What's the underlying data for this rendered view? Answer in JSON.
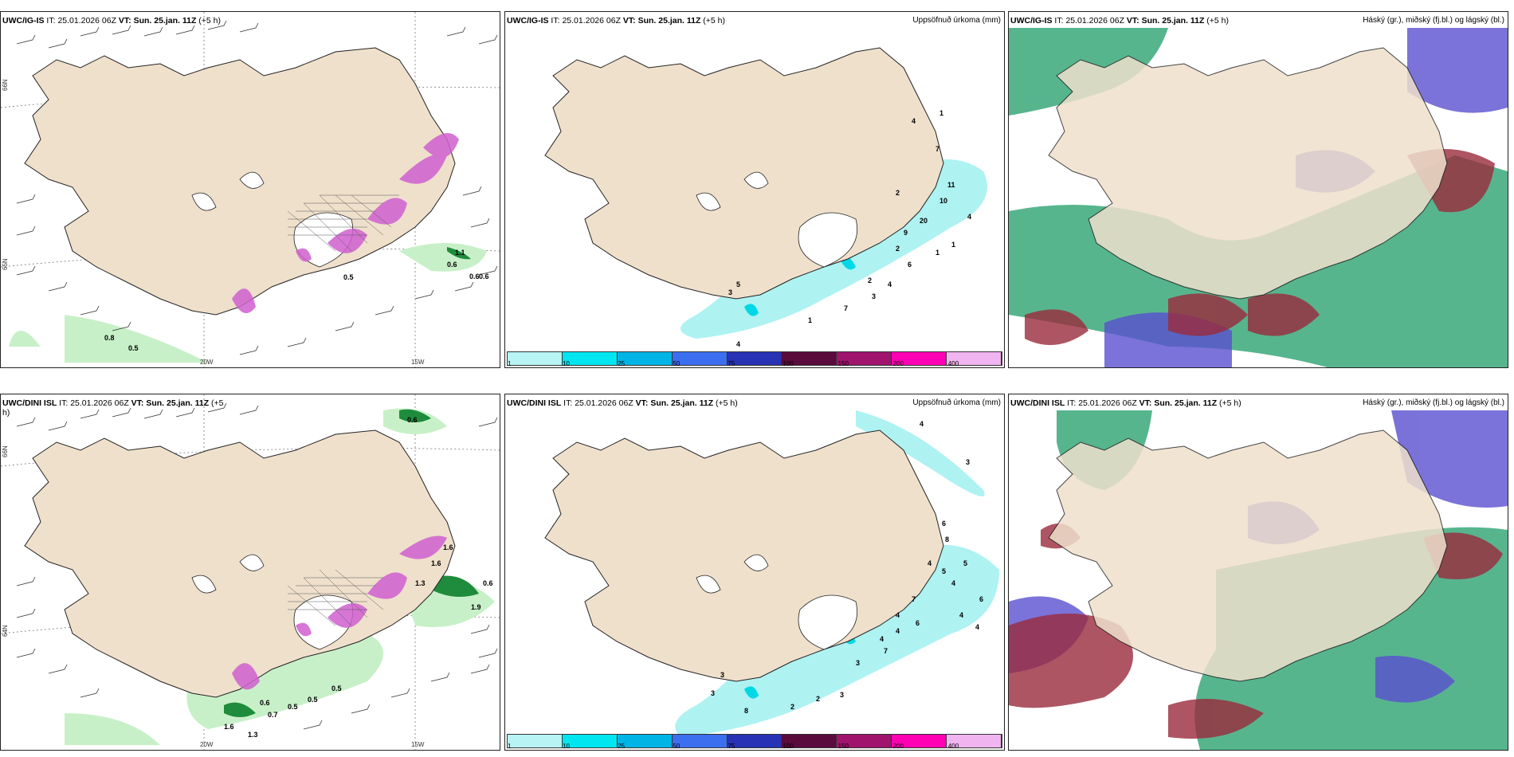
{
  "panels": {
    "p1": {
      "model": "UWC/IG-IS",
      "it_label": "IT:",
      "it": "25.01.2026 06Z",
      "vt_label": "VT:",
      "vt": "Sun. 25.jan. 11Z",
      "lead": "(+5 h)",
      "title": ""
    },
    "p2": {
      "model": "UWC/IG-IS",
      "it_label": "IT:",
      "it": "25.01.2026 06Z",
      "vt_label": "VT:",
      "vt": "Sun. 25.jan. 11Z",
      "lead": "(+5 h)",
      "title": "Uppsöfnuð úrkoma (mm)"
    },
    "p3": {
      "model": "UWC/IG-IS",
      "it_label": "IT:",
      "it": "25.01.2026 06Z",
      "vt_label": "VT:",
      "vt": "Sun. 25.jan. 11Z",
      "lead": "(+5 h)",
      "title": "Háský (gr.), miðský (fj.bl.) og lágský (bl.)"
    },
    "p4": {
      "model": "UWC/DINI ISL",
      "it_label": "IT:",
      "it": "25.01.2026 06Z",
      "vt_label": "VT:",
      "vt": "Sun. 25.jan. 11Z",
      "lead": "(+5",
      "lead2": "h)",
      "title": ""
    },
    "p5": {
      "model": "UWC/DINI ISL",
      "it_label": "IT:",
      "it": "25.01.2026 06Z",
      "vt_label": "VT:",
      "vt": "Sun. 25.jan. 11Z",
      "lead": "(+5 h)",
      "title": "Uppsöfnuð úrkoma (mm)"
    },
    "p6": {
      "model": "UWC/DINI ISL",
      "it_label": "IT:",
      "it": "25.01.2026 06Z",
      "vt_label": "VT:",
      "vt": "Sun. 25.jan. 11Z",
      "lead": "(+5 h)",
      "title": "Háský (gr.), miðský (fj.bl.) og lágský (bl.)"
    }
  },
  "axis": {
    "lon_w": "20W",
    "lon_e": "15W",
    "lat_n": "66N",
    "lat_s": "64N",
    "lat_ss": "65N"
  },
  "colorbar": {
    "levels": [
      "1",
      "10",
      "25",
      "50",
      "75",
      "100",
      "150",
      "200",
      "400"
    ],
    "colors": [
      "#b8f4f4",
      "#00e6f0",
      "#00b4e6",
      "#3c6ef0",
      "#2832b4",
      "#5a0a3c",
      "#a0146e",
      "#ff00b4",
      "#f0b4f0"
    ]
  },
  "colors": {
    "land": "#efe0cc",
    "ocean": "#ffffff",
    "precip": "#aef2f2",
    "precip_dark": "#00d8e6",
    "snow": "#d060d0",
    "green_light": "#c8f0c8",
    "green_dark": "#1e8c3c",
    "high": "#3aa87a",
    "mid": "#5a50d0",
    "low": "#9a2a3c"
  },
  "labels": {
    "p1": [
      "0.6",
      "0.6",
      "0.6",
      "0.5",
      "0.8",
      "0.5",
      "1.1"
    ],
    "p2": [
      "2",
      "1",
      "4",
      "7",
      "11",
      "10",
      "20",
      "9",
      "2",
      "6",
      "1",
      "1",
      "2",
      "4",
      "3",
      "7",
      "1",
      "5",
      "3",
      "4",
      "4"
    ],
    "p4": [
      "0.6",
      "0.6",
      "1.9",
      "0.5",
      "0.6",
      "0.7",
      "0.5",
      "0.5",
      "1.6",
      "1.3",
      "1.3",
      "1.6",
      "1.6"
    ],
    "p5": [
      "4",
      "3",
      "6",
      "8",
      "5",
      "4",
      "4",
      "7",
      "4",
      "6",
      "4",
      "6",
      "4",
      "4",
      "4",
      "7",
      "3",
      "2",
      "8",
      "3",
      "3",
      "3",
      "2",
      "5"
    ]
  }
}
